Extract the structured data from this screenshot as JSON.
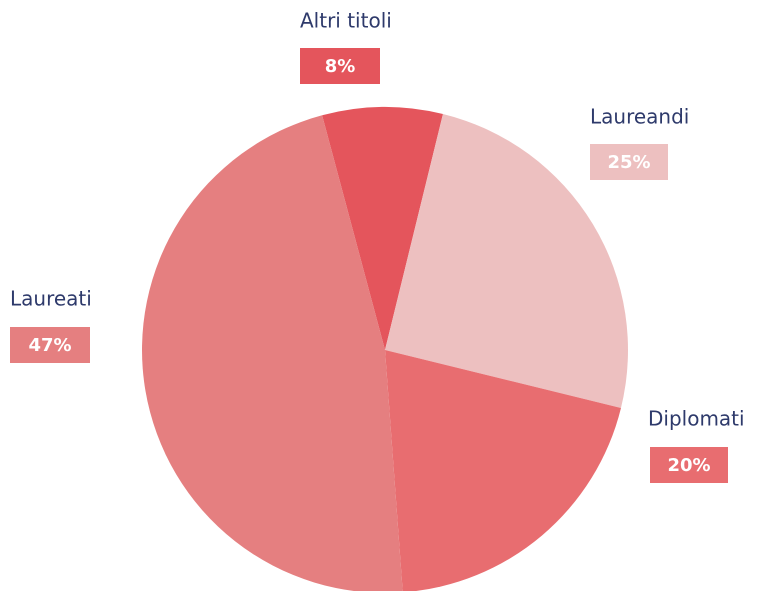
{
  "chart_data": {
    "type": "pie",
    "categories": [
      "Altri titoli",
      "Laureandi",
      "Diplomati",
      "Laureati"
    ],
    "values": [
      8,
      25,
      20,
      47
    ],
    "value_labels": [
      "8%",
      "25%",
      "20%",
      "47%"
    ],
    "colors": [
      "#e4555c",
      "#edc0c0",
      "#e86d70",
      "#e57f80"
    ]
  }
}
